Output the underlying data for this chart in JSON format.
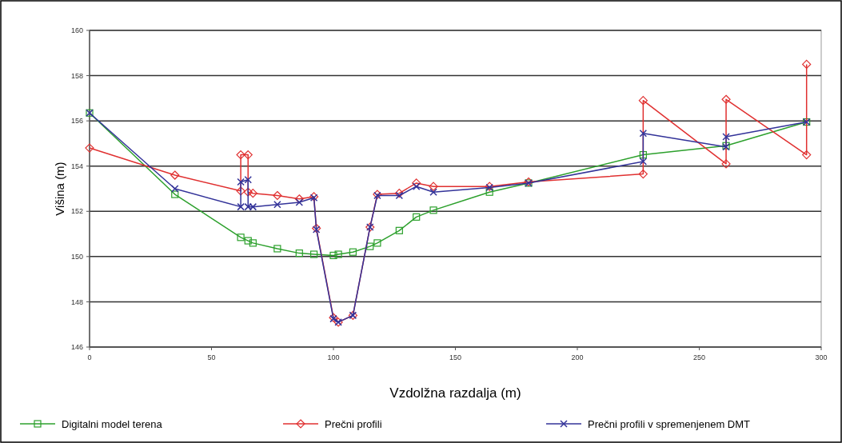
{
  "chart_data": {
    "type": "line",
    "xlabel": "Vzdolžna razdalja (m)",
    "ylabel": "Višina (m)",
    "xlim": [
      0,
      300
    ],
    "xticks": [
      0,
      50,
      100,
      150,
      200,
      250,
      300
    ],
    "ylim": [
      146,
      160
    ],
    "yticks": [
      146,
      148,
      150,
      152,
      154,
      156,
      158,
      160
    ],
    "grid": "y",
    "legend": "bottom",
    "series": [
      {
        "name": "Digitalni model terena",
        "color": "#2ca02c",
        "marker": "square",
        "x": [
          0,
          35,
          62,
          65,
          67,
          77,
          86,
          92,
          100,
          102,
          108,
          115,
          118,
          127,
          134,
          141,
          164,
          180,
          227,
          261,
          294
        ],
        "values": [
          156.35,
          152.75,
          150.85,
          150.7,
          150.6,
          150.35,
          150.15,
          150.1,
          150.05,
          150.1,
          150.2,
          150.45,
          150.6,
          151.15,
          151.75,
          152.05,
          152.85,
          153.25,
          154.5,
          154.9,
          155.95
        ]
      },
      {
        "name": "Prečni profili",
        "color": "#e03030",
        "marker": "diamond",
        "x": [
          0,
          35,
          62,
          62,
          65,
          65,
          67,
          77,
          86,
          92,
          93,
          100,
          102,
          108,
          115,
          118,
          127,
          134,
          141,
          164,
          180,
          227,
          227,
          261,
          261,
          294,
          294
        ],
        "values": [
          154.8,
          153.6,
          152.9,
          154.5,
          154.5,
          152.85,
          152.8,
          152.7,
          152.55,
          152.65,
          151.25,
          147.3,
          147.1,
          147.4,
          151.3,
          152.75,
          152.8,
          153.25,
          153.1,
          153.1,
          153.3,
          153.65,
          156.9,
          154.1,
          156.95,
          154.5,
          158.5
        ]
      },
      {
        "name": "Prečni profili v spremenjenem DMT",
        "color": "#333399",
        "marker": "cross",
        "x": [
          0,
          35,
          62,
          62,
          65,
          65,
          67,
          77,
          86,
          92,
          93,
          100,
          102,
          108,
          115,
          118,
          127,
          134,
          141,
          164,
          180,
          227,
          227,
          261,
          261,
          294
        ],
        "values": [
          156.35,
          153.0,
          152.2,
          153.3,
          153.4,
          152.2,
          152.2,
          152.3,
          152.4,
          152.6,
          151.2,
          147.25,
          147.1,
          147.4,
          151.3,
          152.7,
          152.7,
          153.1,
          152.85,
          153.05,
          153.25,
          154.2,
          155.45,
          154.85,
          155.3,
          155.95
        ]
      }
    ]
  }
}
